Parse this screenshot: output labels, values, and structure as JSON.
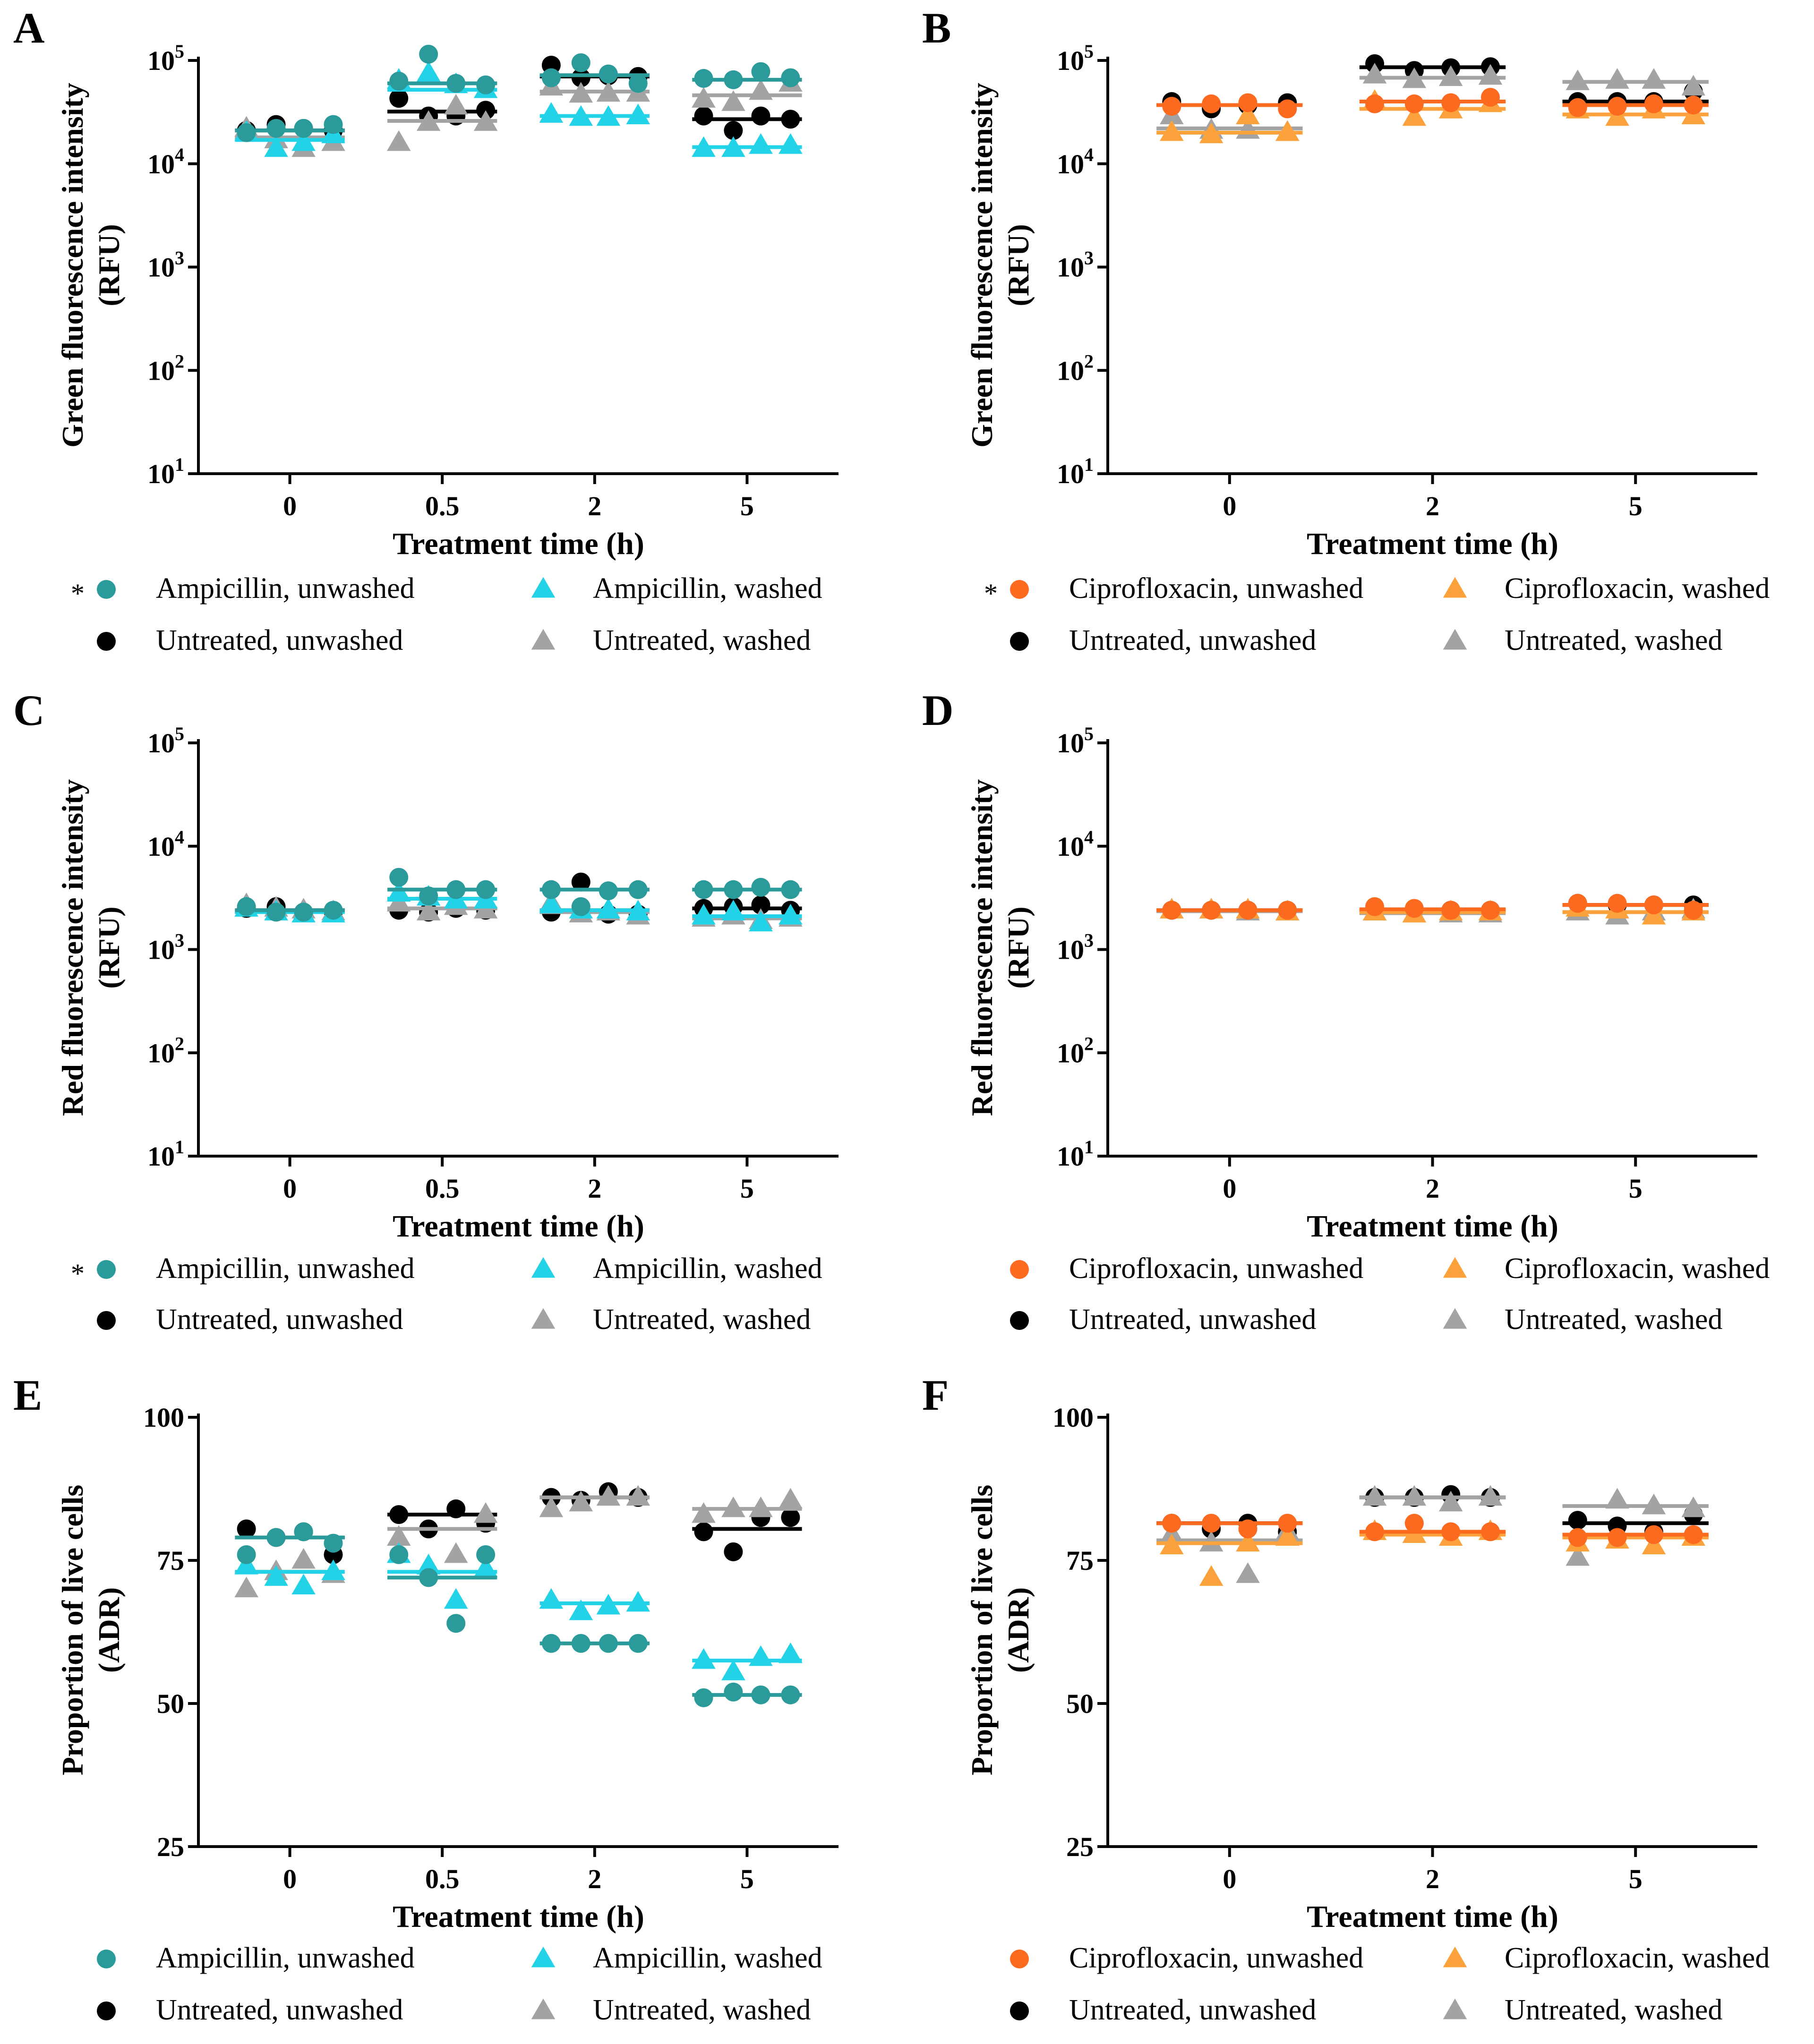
{
  "colors": {
    "ampicillin_unwashed": "#2a9a9a",
    "ampicillin_washed": "#22d3e8",
    "ciprofloxacin_unwashed": "#fb6a1e",
    "ciprofloxacin_washed": "#fba23c",
    "untreated_unwashed": "#000000",
    "untreated_washed": "#a3a3a3"
  },
  "chart_data": [
    {
      "panel": "A",
      "type": "scatter",
      "scale": "log",
      "ylabel_line1": "Green fluorescence intensity",
      "ylabel_line2": "(RFU)",
      "xlabel": "Treatment time (h)",
      "categories": [
        "0",
        "0.5",
        "2",
        "5"
      ],
      "yticks": [
        {
          "v": 10,
          "exp": "1"
        },
        {
          "v": 100,
          "exp": "2"
        },
        {
          "v": 1000,
          "exp": "3"
        },
        {
          "v": 10000,
          "exp": "4"
        },
        {
          "v": 100000,
          "exp": "5"
        }
      ],
      "ylim": [
        10,
        100000
      ],
      "series": [
        {
          "name": "Untreated, unwashed",
          "color_key": "untreated_unwashed",
          "marker": "circle",
          "points": [
            [
              21000,
              24000,
              22000,
              21000
            ],
            [
              43000,
              29000,
              29000,
              33000
            ],
            [
              90000,
              68000,
              71000,
              70000
            ],
            [
              29000,
              21000,
              29000,
              27000
            ]
          ],
          "means": [
            21000,
            32000,
            70000,
            27000
          ]
        },
        {
          "name": "Untreated, washed",
          "color_key": "untreated_washed",
          "marker": "triangle",
          "points": [
            [
              22000,
              17000,
              14000,
              16000
            ],
            [
              16000,
              25000,
              36000,
              25000
            ],
            [
              55000,
              47000,
              48000,
              48000
            ],
            [
              42000,
              39000,
              50000,
              60000
            ]
          ],
          "means": [
            18000,
            26000,
            50000,
            46000
          ]
        },
        {
          "name": "Ampicillin, washed",
          "color_key": "ampicillin_washed",
          "marker": "triangle",
          "points": [
            [
              20000,
              14000,
              16000,
              19000
            ],
            [
              64000,
              75000,
              58000,
              52000
            ],
            [
              30000,
              28000,
              28000,
              29000
            ],
            [
              14000,
              14000,
              15000,
              15000
            ]
          ],
          "means": [
            17000,
            52000,
            29000,
            14500
          ]
        },
        {
          "name": "Ampicillin, unwashed",
          "color_key": "ampicillin_unwashed",
          "marker": "circle",
          "star": true,
          "points": [
            [
              20000,
              22000,
              22000,
              24000
            ],
            [
              63000,
              115000,
              60000,
              58000
            ],
            [
              68000,
              95000,
              74000,
              60000
            ],
            [
              67000,
              65000,
              78000,
              68000
            ]
          ],
          "means": [
            21000,
            60000,
            72000,
            65000
          ]
        }
      ]
    },
    {
      "panel": "B",
      "type": "scatter",
      "scale": "log",
      "ylabel_line1": "Green fluorescence intensity",
      "ylabel_line2": "(RFU)",
      "xlabel": "Treatment time (h)",
      "categories": [
        "0",
        "2",
        "5"
      ],
      "yticks": [
        {
          "v": 10,
          "exp": "1"
        },
        {
          "v": 100,
          "exp": "2"
        },
        {
          "v": 1000,
          "exp": "3"
        },
        {
          "v": 10000,
          "exp": "4"
        },
        {
          "v": 100000,
          "exp": "5"
        }
      ],
      "ylim": [
        10,
        100000
      ],
      "series": [
        {
          "name": "Untreated, unwashed",
          "color_key": "untreated_unwashed",
          "marker": "circle",
          "points": [
            [
              40000,
              34000,
              37000,
              39000
            ],
            [
              93000,
              80000,
              85000,
              87000
            ],
            [
              40000,
              40000,
              40000,
              50000
            ]
          ],
          "means": [
            37000,
            86000,
            40000
          ]
        },
        {
          "name": "Untreated, washed",
          "color_key": "untreated_washed",
          "marker": "triangle",
          "points": [
            [
              29000,
              21000,
              21000,
              20000
            ],
            [
              72000,
              65000,
              68000,
              70000
            ],
            [
              62000,
              64000,
              64000,
              55000
            ]
          ],
          "means": [
            22000,
            68000,
            62000
          ]
        },
        {
          "name": "Ciprofloxacin, washed",
          "color_key": "ciprofloxacin_washed",
          "marker": "triangle",
          "points": [
            [
              20000,
              19000,
              29000,
              20000
            ],
            [
              40000,
              28000,
              33000,
              38000
            ],
            [
              33000,
              28000,
              33000,
              29000
            ]
          ],
          "means": [
            20000,
            34000,
            30000
          ]
        },
        {
          "name": "Ciprofloxacin, unwashed",
          "color_key": "ciprofloxacin_unwashed",
          "marker": "circle",
          "star": true,
          "points": [
            [
              36000,
              38000,
              39000,
              34000
            ],
            [
              38000,
              38000,
              39000,
              44000
            ],
            [
              35000,
              36000,
              38000,
              37000
            ]
          ],
          "means": [
            37000,
            40000,
            37000
          ]
        }
      ]
    },
    {
      "panel": "C",
      "type": "scatter",
      "scale": "log",
      "ylabel_line1": "Red fluorescence intensity",
      "ylabel_line2": "(RFU)",
      "xlabel": "Treatment time (h)",
      "categories": [
        "0",
        "0.5",
        "2",
        "5"
      ],
      "yticks": [
        {
          "v": 10,
          "exp": "1"
        },
        {
          "v": 100,
          "exp": "2"
        },
        {
          "v": 1000,
          "exp": "3"
        },
        {
          "v": 10000,
          "exp": "4"
        },
        {
          "v": 100000,
          "exp": "5"
        }
      ],
      "ylim": [
        10,
        100000
      ],
      "series": [
        {
          "name": "Untreated, unwashed",
          "color_key": "untreated_unwashed",
          "marker": "circle",
          "points": [
            [
              2500,
              2600,
              2300,
              2300
            ],
            [
              2400,
              2300,
              2500,
              2400
            ],
            [
              2300,
              4500,
              2200,
              2200
            ],
            [
              2500,
              2600,
              2700,
              2400
            ]
          ],
          "means": [
            2400,
            2500,
            2400,
            2500
          ]
        },
        {
          "name": "Untreated, washed",
          "color_key": "untreated_washed",
          "marker": "triangle",
          "points": [
            [
              2700,
              2500,
              2400,
              2300
            ],
            [
              2800,
              2300,
              2600,
              2400
            ],
            [
              2800,
              2200,
              2300,
              2100
            ],
            [
              2000,
              2100,
              1900,
              2000
            ]
          ],
          "means": [
            2400,
            2500,
            2300,
            2000
          ]
        },
        {
          "name": "Ampicillin, washed",
          "color_key": "ampicillin_washed",
          "marker": "triangle",
          "points": [
            [
              2500,
              2300,
              2200,
              2200
            ],
            [
              3500,
              3200,
              3000,
              3000
            ],
            [
              2700,
              2400,
              2400,
              2300
            ],
            [
              2100,
              2300,
              1800,
              2100
            ]
          ],
          "means": [
            2300,
            3100,
            2400,
            2100
          ]
        },
        {
          "name": "Ampicillin, unwashed",
          "color_key": "ampicillin_unwashed",
          "marker": "circle",
          "star": true,
          "points": [
            [
              2600,
              2300,
              2300,
              2400
            ],
            [
              5000,
              3300,
              3800,
              3800
            ],
            [
              3800,
              2600,
              3700,
              3800
            ],
            [
              3800,
              3800,
              4000,
              3800
            ]
          ],
          "means": [
            2400,
            3800,
            3800,
            3800
          ]
        }
      ]
    },
    {
      "panel": "D",
      "type": "scatter",
      "scale": "log",
      "ylabel_line1": "Red fluorescence intensity",
      "ylabel_line2": "(RFU)",
      "xlabel": "Treatment time (h)",
      "categories": [
        "0",
        "2",
        "5"
      ],
      "yticks": [
        {
          "v": 10,
          "exp": "1"
        },
        {
          "v": 100,
          "exp": "2"
        },
        {
          "v": 1000,
          "exp": "3"
        },
        {
          "v": 10000,
          "exp": "4"
        },
        {
          "v": 100000,
          "exp": "5"
        }
      ],
      "ylim": [
        10,
        100000
      ],
      "series": [
        {
          "name": "Untreated, unwashed",
          "color_key": "untreated_unwashed",
          "marker": "circle",
          "points": [
            [
              2400,
              2400,
              2400,
              2400
            ],
            [
              2400,
              2400,
              2400,
              2400
            ],
            [
              2800,
              2700,
              2700,
              2700
            ]
          ],
          "means": [
            2400,
            2400,
            2700
          ]
        },
        {
          "name": "Untreated, washed",
          "color_key": "untreated_washed",
          "marker": "triangle",
          "points": [
            [
              2400,
              2400,
              2300,
              2300
            ],
            [
              2300,
              2200,
              2200,
              2200
            ],
            [
              2300,
              2100,
              2300,
              2400
            ]
          ],
          "means": [
            2350,
            2250,
            2300
          ]
        },
        {
          "name": "Ciprofloxacin, washed",
          "color_key": "ciprofloxacin_washed",
          "marker": "triangle",
          "points": [
            [
              2400,
              2400,
              2400,
              2300
            ],
            [
              2300,
              2200,
              2300,
              2300
            ],
            [
              2500,
              2400,
              2100,
              2300
            ]
          ],
          "means": [
            2400,
            2300,
            2300
          ]
        },
        {
          "name": "Ciprofloxacin, unwashed",
          "color_key": "ciprofloxacin_unwashed",
          "marker": "circle",
          "points": [
            [
              2400,
              2400,
              2400,
              2400
            ],
            [
              2600,
              2500,
              2400,
              2400
            ],
            [
              2800,
              2800,
              2700,
              2400
            ]
          ],
          "means": [
            2400,
            2450,
            2700
          ]
        }
      ]
    },
    {
      "panel": "E",
      "type": "scatter",
      "scale": "linear",
      "ylabel_line1": "Proportion of live cells",
      "ylabel_line2": "(ADR)",
      "xlabel": "Treatment time (h)",
      "categories": [
        "0",
        "0.5",
        "2",
        "5"
      ],
      "yticks": [
        {
          "v": 25,
          "label": "25"
        },
        {
          "v": 50,
          "label": "50"
        },
        {
          "v": 75,
          "label": "75"
        },
        {
          "v": 100,
          "label": "100"
        }
      ],
      "ylim": [
        25,
        100
      ],
      "series": [
        {
          "name": "Untreated, unwashed",
          "color_key": "untreated_unwashed",
          "marker": "circle",
          "points": [
            [
              80.5,
              79,
              80,
              76
            ],
            [
              83,
              80.5,
              84,
              81.5
            ],
            [
              86,
              85.5,
              87,
              86
            ],
            [
              80,
              76.5,
              82.5,
              82.5
            ]
          ],
          "means": [
            79,
            83,
            86,
            80.5
          ]
        },
        {
          "name": "Untreated, washed",
          "color_key": "untreated_washed",
          "marker": "triangle",
          "points": [
            [
              70,
              73,
              75,
              72.5
            ],
            [
              79,
              74,
              76,
              83
            ],
            [
              84,
              85,
              86,
              86
            ],
            [
              83,
              84,
              84,
              85.5
            ]
          ],
          "means": [
            73,
            80.5,
            86,
            84
          ]
        },
        {
          "name": "Ampicillin, washed",
          "color_key": "ampicillin_washed",
          "marker": "triangle",
          "points": [
            [
              74,
              72,
              70.5,
              73
            ],
            [
              76,
              74,
              68,
              73.5
            ],
            [
              68,
              66,
              67,
              67.5
            ],
            [
              57.5,
              55.5,
              58,
              58.5
            ]
          ],
          "means": [
            73,
            73,
            67.5,
            57.5
          ]
        },
        {
          "name": "Ampicillin, unwashed",
          "color_key": "ampicillin_unwashed",
          "marker": "circle",
          "points": [
            [
              76,
              79,
              80,
              78
            ],
            [
              76,
              72,
              64,
              76
            ],
            [
              60.5,
              60.5,
              60.5,
              60.5
            ],
            [
              51,
              52,
              51.5,
              51.5
            ]
          ],
          "means": [
            79,
            72,
            60.5,
            51.5
          ]
        }
      ]
    },
    {
      "panel": "F",
      "type": "scatter",
      "scale": "linear",
      "ylabel_line1": "Proportion of live cells",
      "ylabel_line2": "(ADR)",
      "xlabel": "Treatment time (h)",
      "categories": [
        "0",
        "2",
        "5"
      ],
      "yticks": [
        {
          "v": 25,
          "label": "25"
        },
        {
          "v": 50,
          "label": "50"
        },
        {
          "v": 75,
          "label": "75"
        },
        {
          "v": 100,
          "label": "100"
        }
      ],
      "ylim": [
        25,
        100
      ],
      "series": [
        {
          "name": "Untreated, unwashed",
          "color_key": "untreated_unwashed",
          "marker": "circle",
          "points": [
            [
              81.5,
              80.5,
              81.5,
              80
            ],
            [
              86,
              86,
              86.5,
              86
            ],
            [
              82,
              81,
              80,
              83
            ]
          ],
          "means": [
            81.5,
            86,
            81.5
          ]
        },
        {
          "name": "Untreated, washed",
          "color_key": "untreated_washed",
          "marker": "triangle",
          "points": [
            [
              79.5,
              78,
              72.5,
              80
            ],
            [
              86,
              86,
              85,
              86
            ],
            [
              75.5,
              85.5,
              84.5,
              84
            ]
          ],
          "means": [
            78.5,
            86,
            84.5
          ]
        },
        {
          "name": "Ciprofloxacin, washed",
          "color_key": "ciprofloxacin_washed",
          "marker": "triangle",
          "points": [
            [
              77.5,
              72,
              78,
              79
            ],
            [
              80,
              79.5,
              79,
              80
            ],
            [
              78,
              78.5,
              77.5,
              79
            ]
          ],
          "means": [
            78,
            79.5,
            79
          ]
        },
        {
          "name": "Ciprofloxacin, unwashed",
          "color_key": "ciprofloxacin_unwashed",
          "marker": "circle",
          "points": [
            [
              81.5,
              81.5,
              80.5,
              81.5
            ],
            [
              80,
              81.5,
              80,
              80
            ],
            [
              79,
              79,
              79.5,
              79.5
            ]
          ],
          "means": [
            81.5,
            80,
            79.5
          ]
        }
      ]
    }
  ]
}
